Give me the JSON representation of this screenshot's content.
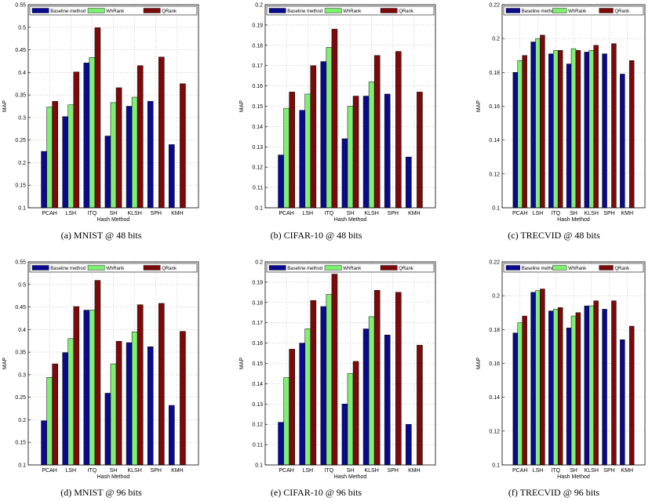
{
  "colors": {
    "baseline": "#0a0a8f",
    "whrank": "#7fef73",
    "qrank": "#7d0a0a",
    "grid": "#b0b0b0"
  },
  "chart_data": [
    {
      "type": "bar",
      "caption": "(a) MNIST @ 48 bits",
      "categories": [
        "PCAH",
        "LSH",
        "ITQ",
        "SH",
        "KLSH",
        "SPH",
        "KMH"
      ],
      "series": [
        {
          "name": "Baseline method",
          "values": [
            0.225,
            0.302,
            0.421,
            0.259,
            0.325,
            0.336,
            0.24
          ]
        },
        {
          "name": "WhRank",
          "values": [
            0.323,
            0.328,
            0.433,
            0.333,
            0.345,
            null,
            null
          ]
        },
        {
          "name": "QRank",
          "values": [
            0.336,
            0.401,
            0.499,
            0.366,
            0.415,
            0.434,
            0.375
          ]
        }
      ],
      "xlabel": "Hash Method",
      "ylabel": "MAP",
      "ylim": [
        0.1,
        0.55
      ],
      "yticks": [
        "0.1",
        "0.15",
        "0.2",
        "0.25",
        "0.3",
        "0.35",
        "0.4",
        "0.45",
        "0.5",
        "0.55"
      ],
      "legend": "top",
      "grid": true
    },
    {
      "type": "bar",
      "caption": "(b) CIFAR-10 @ 48 bits",
      "categories": [
        "PCAH",
        "LSH",
        "ITQ",
        "SH",
        "KLSH",
        "SPH",
        "KMH"
      ],
      "series": [
        {
          "name": "Baseline method",
          "values": [
            0.126,
            0.148,
            0.172,
            0.134,
            0.155,
            0.156,
            0.125
          ]
        },
        {
          "name": "WhRank",
          "values": [
            0.149,
            0.156,
            0.179,
            0.15,
            0.162,
            null,
            null
          ]
        },
        {
          "name": "QRank",
          "values": [
            0.157,
            0.17,
            0.188,
            0.155,
            0.175,
            0.177,
            0.157
          ]
        }
      ],
      "xlabel": "Hash Method",
      "ylabel": "MAP",
      "ylim": [
        0.1,
        0.2
      ],
      "yticks": [
        "0.1",
        "0.11",
        "0.12",
        "0.13",
        "0.14",
        "0.15",
        "0.16",
        "0.17",
        "0.18",
        "0.19",
        "0.2"
      ],
      "legend": "top",
      "grid": true
    },
    {
      "type": "bar",
      "caption": "(c) TRECVID @ 48 bits",
      "categories": [
        "PCAH",
        "LSH",
        "ITQ",
        "SH",
        "KLSH",
        "SPH",
        "KMH"
      ],
      "series": [
        {
          "name": "Baseline method",
          "values": [
            0.18,
            0.198,
            0.191,
            0.185,
            0.192,
            0.191,
            0.179
          ]
        },
        {
          "name": "WhRank",
          "values": [
            0.187,
            0.2,
            0.193,
            0.194,
            0.193,
            null,
            null
          ]
        },
        {
          "name": "QRank",
          "values": [
            0.19,
            0.202,
            0.193,
            0.193,
            0.196,
            0.197,
            0.187
          ]
        }
      ],
      "xlabel": "Hash Method",
      "ylabel": "MAP",
      "ylim": [
        0.1,
        0.22
      ],
      "yticks": [
        "0.1",
        "0.12",
        "0.14",
        "0.16",
        "0.18",
        "0.2",
        "0.22"
      ],
      "legend": "top",
      "grid": true
    },
    {
      "type": "bar",
      "caption": "(d) MNIST @ 96 bits",
      "categories": [
        "PCAH",
        "LSH",
        "ITQ",
        "SH",
        "KLSH",
        "SPH",
        "KMH"
      ],
      "series": [
        {
          "name": "Baseline method",
          "values": [
            0.198,
            0.349,
            0.443,
            0.259,
            0.371,
            0.362,
            0.232
          ]
        },
        {
          "name": "WhRank",
          "values": [
            0.294,
            0.38,
            0.443,
            0.324,
            0.395,
            null,
            null
          ]
        },
        {
          "name": "QRank",
          "values": [
            0.324,
            0.451,
            0.509,
            0.374,
            0.455,
            0.458,
            0.396
          ]
        }
      ],
      "xlabel": "Hash Method",
      "ylabel": "MAP",
      "ylim": [
        0.1,
        0.55
      ],
      "yticks": [
        "0.1",
        "0.15",
        "0.2",
        "0.25",
        "0.3",
        "0.35",
        "0.4",
        "0.45",
        "0.5",
        "0.55"
      ],
      "legend": "top",
      "grid": true
    },
    {
      "type": "bar",
      "caption": "(e) CIFAR-10 @ 96 bits",
      "categories": [
        "PCAH",
        "LSH",
        "ITQ",
        "SH",
        "KLSH",
        "SPH",
        "KMH"
      ],
      "series": [
        {
          "name": "Baseline method",
          "values": [
            0.121,
            0.16,
            0.178,
            0.13,
            0.167,
            0.164,
            0.12
          ]
        },
        {
          "name": "WhRank",
          "values": [
            0.143,
            0.167,
            0.184,
            0.145,
            0.173,
            null,
            null
          ]
        },
        {
          "name": "QRank",
          "values": [
            0.157,
            0.181,
            0.194,
            0.151,
            0.186,
            0.185,
            0.159
          ]
        }
      ],
      "xlabel": "Hash Method",
      "ylabel": "MAP",
      "ylim": [
        0.1,
        0.2
      ],
      "yticks": [
        "0.1",
        "0.11",
        "0.12",
        "0.13",
        "0.14",
        "0.15",
        "0.16",
        "0.17",
        "0.18",
        "0.19",
        "0.2"
      ],
      "legend": "top",
      "grid": true
    },
    {
      "type": "bar",
      "caption": "(f) TRECVID @ 96 bits",
      "categories": [
        "PCAH",
        "LSH",
        "ITQ",
        "SH",
        "KLSH",
        "SPH",
        "KMH"
      ],
      "series": [
        {
          "name": "Baseline method",
          "values": [
            0.178,
            0.202,
            0.191,
            0.181,
            0.194,
            0.192,
            0.174
          ]
        },
        {
          "name": "WhRank",
          "values": [
            0.184,
            0.203,
            0.192,
            0.188,
            0.194,
            null,
            null
          ]
        },
        {
          "name": "QRank",
          "values": [
            0.188,
            0.204,
            0.193,
            0.19,
            0.197,
            0.197,
            0.182
          ]
        }
      ],
      "xlabel": "Hash Method",
      "ylabel": "MAP",
      "ylim": [
        0.1,
        0.22
      ],
      "yticks": [
        "0.1",
        "0.12",
        "0.14",
        "0.16",
        "0.18",
        "0.2",
        "0.22"
      ],
      "legend": "top",
      "grid": true
    }
  ]
}
